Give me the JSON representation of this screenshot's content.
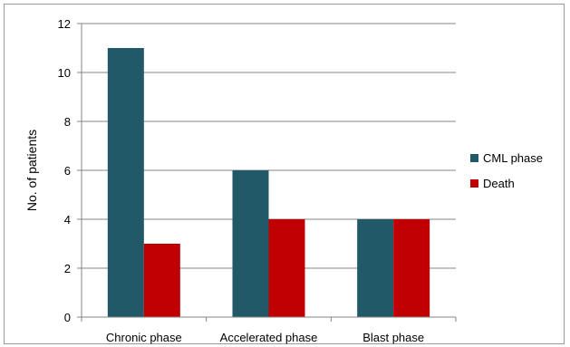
{
  "chart_data": {
    "type": "bar",
    "title": "",
    "xlabel": "",
    "ylabel": "No. of patients",
    "categories": [
      "Chronic phase",
      "Accelerated phase",
      "Blast phase"
    ],
    "series": [
      {
        "name": "CML phase",
        "values": [
          11,
          6,
          4
        ],
        "color": "#215968"
      },
      {
        "name": "Death",
        "values": [
          3,
          4,
          4
        ],
        "color": "#c00000"
      }
    ],
    "ylim": [
      0,
      12
    ],
    "yticks": [
      0,
      2,
      4,
      6,
      8,
      10,
      12
    ],
    "grid": true,
    "legend_position": "right"
  }
}
